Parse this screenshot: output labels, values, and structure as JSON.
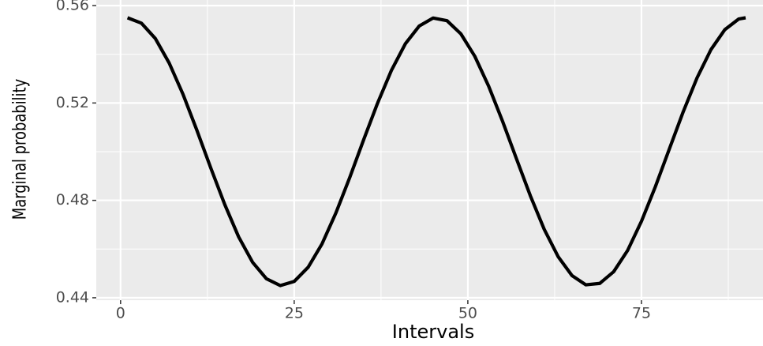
{
  "chart_data": {
    "type": "line",
    "x_label": "Intervals",
    "y_label": "Marginal probability",
    "x": [
      1,
      3,
      5,
      7,
      9,
      11,
      13,
      15,
      17,
      19,
      21,
      23,
      25,
      27,
      29,
      31,
      33,
      35,
      37,
      39,
      41,
      43,
      45,
      47,
      49,
      51,
      53,
      55,
      57,
      59,
      61,
      63,
      65,
      67,
      69,
      71,
      73,
      75,
      77,
      79,
      81,
      83,
      85,
      87,
      89,
      90
    ],
    "series": [
      {
        "color": "#000000",
        "values": [
          0.555,
          0.5528,
          0.5465,
          0.5364,
          0.5235,
          0.5087,
          0.4932,
          0.4783,
          0.465,
          0.4546,
          0.4478,
          0.445,
          0.4467,
          0.4525,
          0.4621,
          0.4748,
          0.4894,
          0.5049,
          0.5199,
          0.5334,
          0.5443,
          0.5516,
          0.5549,
          0.5538,
          0.5484,
          0.5392,
          0.5269,
          0.5125,
          0.4971,
          0.4819,
          0.4681,
          0.4569,
          0.4491,
          0.4453,
          0.4459,
          0.4507,
          0.4594,
          0.4714,
          0.4856,
          0.501,
          0.5163,
          0.5303,
          0.5419,
          0.5501,
          0.5545,
          0.555
        ]
      }
    ],
    "xlim": [
      -3.5,
      92.5
    ],
    "ylim": [
      0.439,
      0.5623
    ],
    "xticks": [
      0,
      25,
      50,
      75
    ],
    "yticks": [
      {
        "value": 0.44,
        "label": "0.44"
      },
      {
        "value": 0.48,
        "label": "0.48"
      },
      {
        "value": 0.52,
        "label": "0.52"
      },
      {
        "value": 0.56,
        "label": "0.56"
      }
    ],
    "grid": true
  }
}
